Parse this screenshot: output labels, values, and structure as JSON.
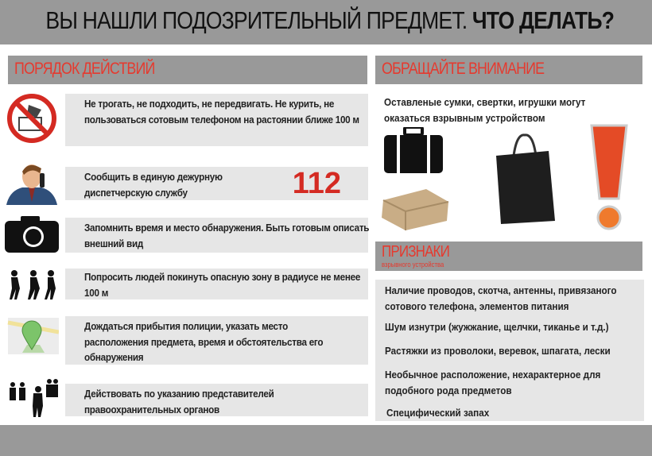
{
  "title": {
    "part1": "ВЫ НАШЛИ ПОДОЗРИТЕЛЬНЫЙ ПРЕДМЕТ.",
    "part2": "ЧТО ДЕЛАТЬ?"
  },
  "left": {
    "header": "ПОРЯДОК ДЕЙСТВИЙ",
    "steps": [
      {
        "icon": "no-touch-icon",
        "text": "Не трогать, не подходить, не передвигать. Не курить, не пользоваться сотовым телефоном на растоянии ближе 100 м"
      },
      {
        "icon": "man-on-phone-icon",
        "text": "Сообщить в единую дежурную диспетчерскую службу",
        "number": "112"
      },
      {
        "icon": "camera-icon",
        "text": "Запомнить время и место обнаружения. Быть готовым описать внешний вид"
      },
      {
        "icon": "people-leaving-icon",
        "text": "Попросить людей покинуть опасную зону в радиусе не менее 100 м"
      },
      {
        "icon": "map-pin-icon",
        "text": "Дождаться прибытия полиции, указать место расположения предмета, время и обстоятельства его обнаружения"
      },
      {
        "icon": "crowd-icon",
        "text": "Действовать по указанию представителей правоохранительных органов"
      }
    ]
  },
  "right": {
    "header": "ОБРАЩАЙТЕ ВНИМАНИЕ",
    "attention_text": "Оставленые сумки, свертки, игрушки могут оказаться взрывным устройством",
    "signs_header": "ПРИЗНАКИ",
    "signs_subheader": "взрывного устройства",
    "signs": [
      "Наличие проводов, скотча, антенны, привязаного сотового телефона, элементов питания",
      "Шум изнутри (жужжание, щелчки, тиканье и т.д.)",
      "Растяжки  из проволоки, веревок, шпагата, лески",
      "Необычное расположение, нехарактерное для подобного рода предметов",
      "Специфический запах"
    ]
  },
  "colors": {
    "accent": "#e53a2f",
    "bar": "#999999",
    "box": "#e6e6e6"
  }
}
